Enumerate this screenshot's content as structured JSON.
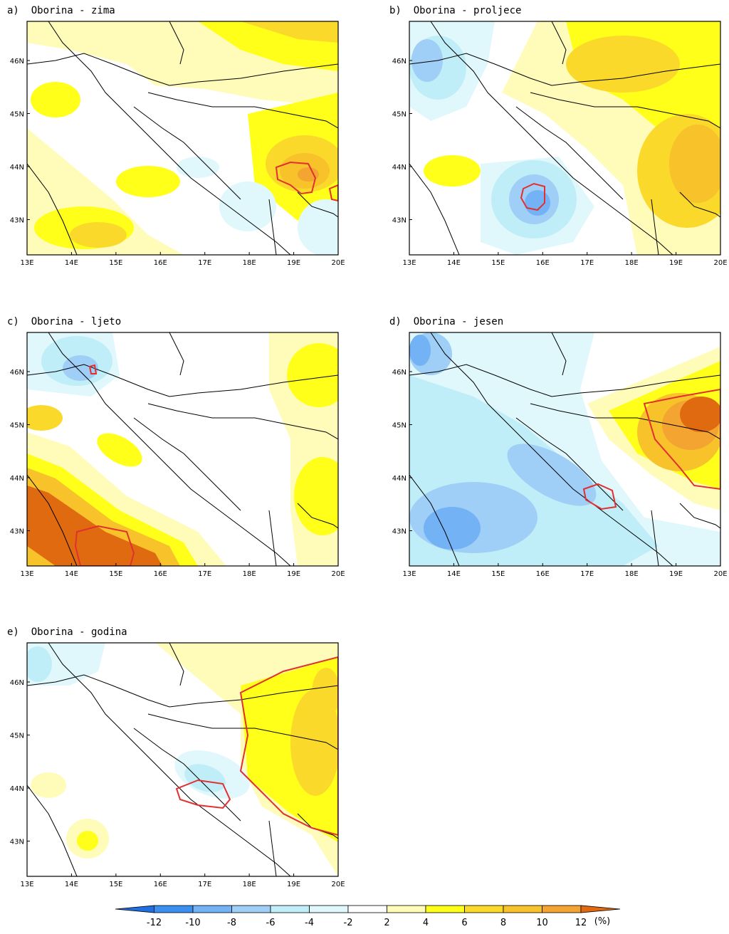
{
  "figure": {
    "colors": {
      "neg12": "#1f6fe0",
      "neg10": "#3b8ff0",
      "neg8": "#72b2f5",
      "neg6": "#9fcef7",
      "neg4": "#c0eef8",
      "neg2": "#e0f8fc",
      "zero": "#ffffff",
      "pos2": "#fffbb8",
      "pos4": "#ffff1a",
      "pos6": "#fbd92a",
      "pos8": "#f8c22b",
      "pos10": "#f4a430",
      "pos12": "#e06a10",
      "coastline": "#000000",
      "significance": "#e23030"
    },
    "lon_ticks": [
      "13E",
      "14E",
      "15E",
      "16E",
      "17E",
      "18E",
      "19E",
      "20E"
    ],
    "lat_ticks": [
      "46N",
      "45N",
      "44N",
      "43N"
    ],
    "panels": [
      {
        "id": "a",
        "title": "a)  Oborina - zima"
      },
      {
        "id": "b",
        "title": "b)  Oborina - proljece"
      },
      {
        "id": "c",
        "title": "c)  Oborina - ljeto"
      },
      {
        "id": "d",
        "title": "d)  Oborina - jesen"
      },
      {
        "id": "e",
        "title": "e)  Oborina - godina"
      }
    ],
    "colorbar": {
      "labels": [
        "-12",
        "-10",
        "-8",
        "-6",
        "-4",
        "-2",
        "2",
        "4",
        "6",
        "8",
        "10",
        "12"
      ],
      "unit": "(%)"
    }
  }
}
